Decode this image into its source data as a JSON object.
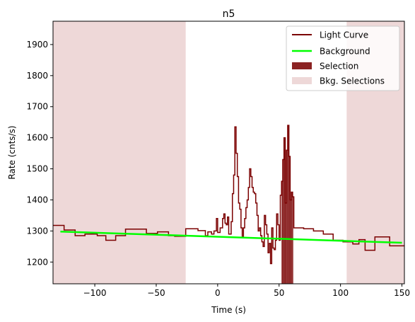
{
  "chart_data": {
    "type": "line",
    "title": "n5",
    "xlabel": "Time (s)",
    "ylabel": "Rate (cnts/s)",
    "xlim": [
      -134,
      152
    ],
    "ylim": [
      1130,
      1975
    ],
    "xticks": [
      -100,
      -50,
      0,
      50,
      100,
      150
    ],
    "yticks": [
      1200,
      1300,
      1400,
      1500,
      1600,
      1700,
      1800,
      1900
    ],
    "grid": false,
    "legend_position": "top-right",
    "legend": [
      {
        "label": "Light Curve",
        "kind": "line",
        "color": "#7b0000"
      },
      {
        "label": "Background",
        "kind": "line",
        "color": "#00ff00"
      },
      {
        "label": "Selection",
        "kind": "patch",
        "color": "#8b2323"
      },
      {
        "label": "Bkg. Selections",
        "kind": "patch",
        "color": "#eed8d8"
      }
    ],
    "background_fit": {
      "x": [
        -128,
        150
      ],
      "y": [
        1298,
        1262
      ],
      "color": "#00ff00"
    },
    "selection": {
      "x0": 52,
      "x1": 61.5,
      "color": "#8b2323"
    },
    "bkg_selections": [
      {
        "x0": -134,
        "x1": -26,
        "color": "#eed8d8"
      },
      {
        "x0": 105,
        "x1": 152,
        "color": "#eed8d8"
      }
    ],
    "light_curve": {
      "color": "#7b0000",
      "steps": [
        [
          -134,
          1318
        ],
        [
          -125,
          1303
        ],
        [
          -116,
          1285
        ],
        [
          -108,
          1290
        ],
        [
          -98,
          1285
        ],
        [
          -91,
          1270
        ],
        [
          -83,
          1285
        ],
        [
          -75,
          1306
        ],
        [
          -58,
          1292
        ],
        [
          -49,
          1297
        ],
        [
          -40,
          1285
        ],
        [
          -35,
          1283
        ],
        [
          -26,
          1307
        ],
        [
          -16,
          1301
        ],
        [
          -10,
          1285
        ],
        [
          -8,
          1297
        ],
        [
          -5,
          1290
        ],
        [
          -3,
          1300
        ],
        [
          -1,
          1340
        ],
        [
          0,
          1295
        ],
        [
          2,
          1310
        ],
        [
          4,
          1340
        ],
        [
          5,
          1355
        ],
        [
          6,
          1325
        ],
        [
          7,
          1320
        ],
        [
          8,
          1345
        ],
        [
          9,
          1290
        ],
        [
          11,
          1330
        ],
        [
          12,
          1420
        ],
        [
          13,
          1480
        ],
        [
          14,
          1635
        ],
        [
          15,
          1550
        ],
        [
          16,
          1475
        ],
        [
          17,
          1390
        ],
        [
          18,
          1370
        ],
        [
          19,
          1310
        ],
        [
          20,
          1280
        ],
        [
          21,
          1310
        ],
        [
          22,
          1340
        ],
        [
          23,
          1375
        ],
        [
          24,
          1400
        ],
        [
          25,
          1440
        ],
        [
          26,
          1500
        ],
        [
          27,
          1475
        ],
        [
          28,
          1440
        ],
        [
          29,
          1425
        ],
        [
          30,
          1420
        ],
        [
          31,
          1390
        ],
        [
          32,
          1350
        ],
        [
          33,
          1300
        ],
        [
          34,
          1310
        ],
        [
          35,
          1285
        ],
        [
          36,
          1265
        ],
        [
          37,
          1250
        ],
        [
          38,
          1350
        ],
        [
          39,
          1320
        ],
        [
          40,
          1290
        ],
        [
          41,
          1230
        ],
        [
          42,
          1260
        ],
        [
          43,
          1195
        ],
        [
          44,
          1310
        ],
        [
          45,
          1245
        ],
        [
          46,
          1240
        ],
        [
          47,
          1270
        ],
        [
          48,
          1355
        ],
        [
          49,
          1320
        ],
        [
          50,
          1270
        ],
        [
          51,
          1415
        ],
        [
          52,
          1460
        ],
        [
          53,
          1530
        ],
        [
          54,
          1600
        ],
        [
          55,
          1390
        ],
        [
          56,
          1560
        ],
        [
          57,
          1640
        ],
        [
          58,
          1540
        ],
        [
          59,
          1400
        ],
        [
          60,
          1425
        ],
        [
          61,
          1410
        ],
        [
          62,
          1310
        ],
        [
          70,
          1307
        ],
        [
          78,
          1300
        ],
        [
          86,
          1290
        ],
        [
          94,
          1270
        ],
        [
          102,
          1265
        ],
        [
          110,
          1258
        ],
        [
          115,
          1272
        ],
        [
          120,
          1238
        ],
        [
          128,
          1281
        ],
        [
          140,
          1252
        ],
        [
          152,
          1252
        ]
      ]
    }
  }
}
